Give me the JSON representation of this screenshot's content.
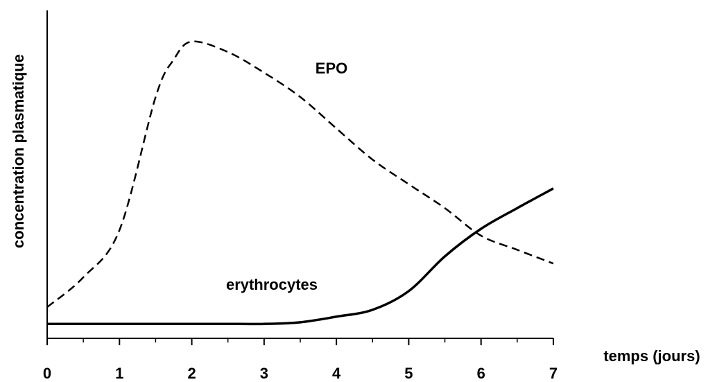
{
  "chart_data": {
    "type": "line",
    "x_label": "temps (jours)",
    "y_label": "concentration plasmatique",
    "x": [
      0,
      0.5,
      1,
      1.5,
      1.75,
      2,
      2.5,
      3,
      3.5,
      4,
      4.5,
      5,
      5.5,
      6,
      6.5,
      7
    ],
    "series": [
      {
        "name": "EPO",
        "color": "#000000",
        "dashed": true,
        "values": [
          9.5,
          18.6,
          33,
          73.6,
          85,
          90.5,
          87.3,
          81,
          73.6,
          64,
          54.5,
          47,
          39.7,
          31.3,
          27,
          22.8
        ]
      },
      {
        "name": "erythrocytes",
        "color": "#000000",
        "dashed": false,
        "values": [
          4.4,
          4.4,
          4.4,
          4.4,
          4.4,
          4.4,
          4.4,
          4.4,
          4.9,
          6.6,
          8.7,
          14.4,
          25,
          33.4,
          39.7,
          45.7
        ]
      }
    ],
    "xlim": [
      0,
      7
    ],
    "xticks": [
      0,
      1,
      2,
      3,
      4,
      5,
      6,
      7
    ],
    "xminorticks": [
      0.5,
      1.5,
      2.5,
      3.5,
      4.5,
      5.5,
      6.5
    ],
    "ylim": [
      0,
      100
    ]
  }
}
